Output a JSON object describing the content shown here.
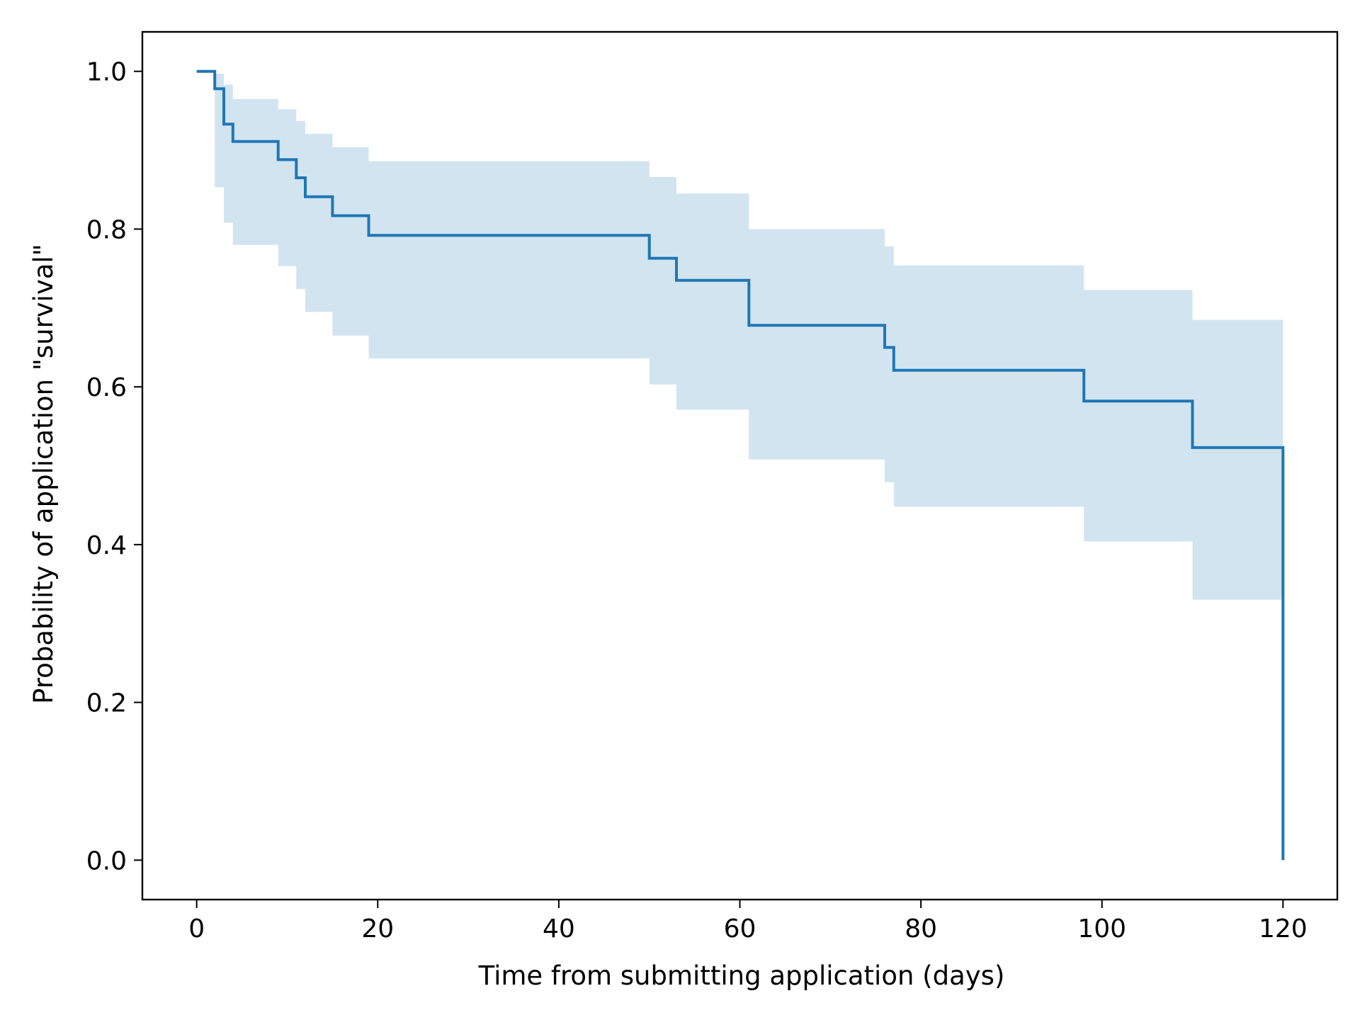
{
  "chart_data": {
    "type": "line",
    "title": "",
    "xlabel": "Time from submitting application (days)",
    "ylabel": "Probability of application \"survival\"",
    "xlim": [
      -6,
      126
    ],
    "ylim": [
      -0.05,
      1.05
    ],
    "xticks": [
      0,
      20,
      40,
      60,
      80,
      100,
      120
    ],
    "xtick_labels": [
      "0",
      "20",
      "40",
      "60",
      "80",
      "100",
      "120"
    ],
    "yticks": [
      0.0,
      0.2,
      0.4,
      0.6,
      0.8,
      1.0
    ],
    "ytick_labels": [
      "0.0",
      "0.2",
      "0.4",
      "0.6",
      "0.8",
      "1.0"
    ],
    "grid": false,
    "legend": "none",
    "colors": {
      "line": "#1f77b4",
      "band": "#1f77b4",
      "band_opacity": 0.2
    },
    "series": [
      {
        "kind": "step-post",
        "x": [
          0,
          2,
          3,
          4,
          9,
          11,
          12,
          15,
          19,
          50,
          53,
          61,
          76,
          77,
          98,
          110,
          120,
          120
        ],
        "y": [
          1.0,
          0.978,
          0.933,
          0.911,
          0.888,
          0.865,
          0.841,
          0.817,
          0.792,
          0.763,
          0.735,
          0.678,
          0.65,
          0.621,
          0.582,
          0.523,
          0.523,
          0.0
        ]
      }
    ],
    "confidence_band": {
      "x": [
        2,
        3,
        4,
        9,
        11,
        12,
        15,
        19,
        50,
        53,
        61,
        76,
        77,
        98,
        110,
        120
      ],
      "lower": [
        0.853,
        0.808,
        0.78,
        0.753,
        0.724,
        0.695,
        0.665,
        0.636,
        0.603,
        0.571,
        0.508,
        0.479,
        0.448,
        0.404,
        0.33,
        0.33
      ],
      "upper": [
        0.997,
        0.983,
        0.965,
        0.952,
        0.937,
        0.921,
        0.904,
        0.886,
        0.866,
        0.845,
        0.8,
        0.778,
        0.754,
        0.723,
        0.685,
        0.685
      ]
    }
  }
}
